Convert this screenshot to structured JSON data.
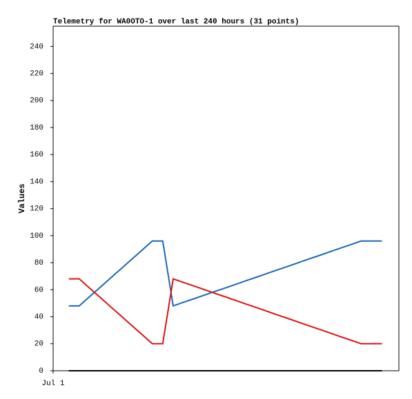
{
  "chart_data": {
    "type": "line",
    "title": "Telemetry for WA0OTO-1 over last 240 hours (31 points)",
    "y_label": "Values",
    "x": [
      12,
      20,
      28,
      36,
      44,
      52,
      60,
      68,
      76,
      84,
      92,
      100,
      108,
      116,
      124,
      132,
      140,
      148,
      156,
      164,
      172,
      180,
      188,
      196,
      204,
      212,
      220,
      228,
      236,
      244,
      252
    ],
    "xlim": [
      0,
      265
    ],
    "xticks": [
      {
        "value": 0,
        "label": "Jul 1"
      }
    ],
    "ylim": [
      0,
      255
    ],
    "yticks": [
      0,
      20,
      40,
      60,
      80,
      100,
      120,
      140,
      160,
      180,
      200,
      220,
      240
    ],
    "grid": false,
    "series": [
      {
        "color": "#1a66b8",
        "values": [
          48,
          48,
          54.9,
          61.7,
          68.6,
          75.4,
          82.3,
          89.1,
          96,
          96,
          48,
          50.7,
          53.3,
          56,
          58.7,
          61.3,
          64,
          66.7,
          69.3,
          72,
          74.7,
          77.3,
          80,
          82.7,
          85.3,
          88,
          90.7,
          93.3,
          96,
          96,
          96
        ]
      },
      {
        "color": "#e01010",
        "values": [
          68,
          68,
          61.1,
          54.3,
          47.4,
          40.6,
          33.7,
          26.9,
          20,
          20,
          68,
          65.3,
          62.7,
          60,
          57.3,
          54.7,
          52,
          49.3,
          46.7,
          44,
          41.3,
          38.7,
          36,
          33.3,
          30.7,
          28,
          25.3,
          22.7,
          20,
          20,
          20
        ]
      },
      {
        "color": "#000000",
        "values": [
          0,
          0,
          0,
          0,
          0,
          0,
          0,
          0,
          0,
          0,
          0,
          0,
          0,
          0,
          0,
          0,
          0,
          0,
          0,
          0,
          0,
          0,
          0,
          0,
          0,
          0,
          0,
          0,
          0,
          0,
          0
        ]
      }
    ]
  }
}
